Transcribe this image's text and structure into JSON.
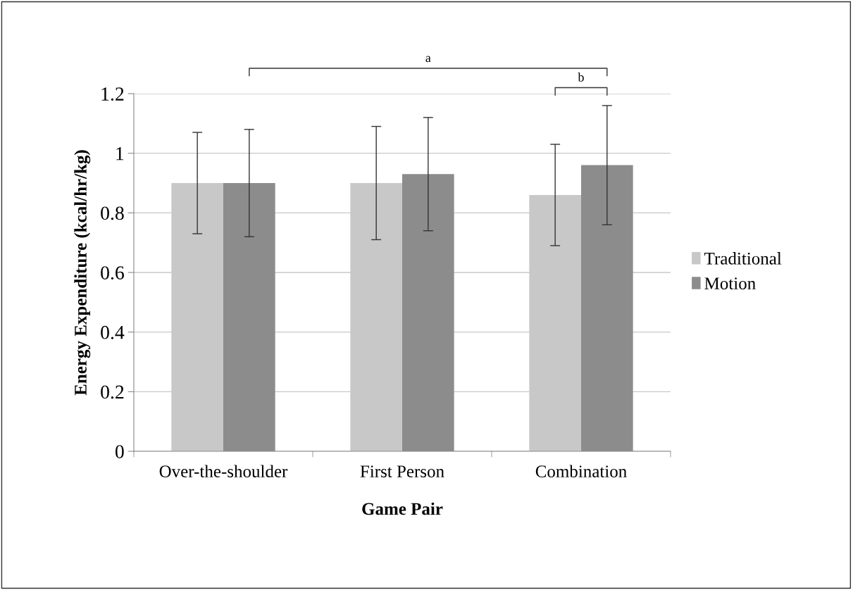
{
  "chart_data": {
    "type": "bar",
    "xlabel": "Game Pair",
    "ylabel": "Energy Expenditure (kcal/hr/kg)",
    "categories": [
      "Over-the-shoulder",
      "First Person",
      "Combination"
    ],
    "series": [
      {
        "name": "Traditional",
        "color": "#c8c8c8",
        "values": [
          0.9,
          0.9,
          0.86
        ],
        "errors": [
          0.17,
          0.19,
          0.17
        ]
      },
      {
        "name": "Motion",
        "color": "#8c8c8c",
        "values": [
          0.9,
          0.93,
          0.96
        ],
        "errors": [
          0.18,
          0.19,
          0.2
        ]
      }
    ],
    "ylim": [
      0,
      1.2
    ],
    "yticks": [
      0,
      0.2,
      0.4,
      0.6,
      0.8,
      1,
      1.2
    ],
    "grid": "y",
    "legend": "right",
    "annotations": [
      "a",
      "b"
    ]
  }
}
